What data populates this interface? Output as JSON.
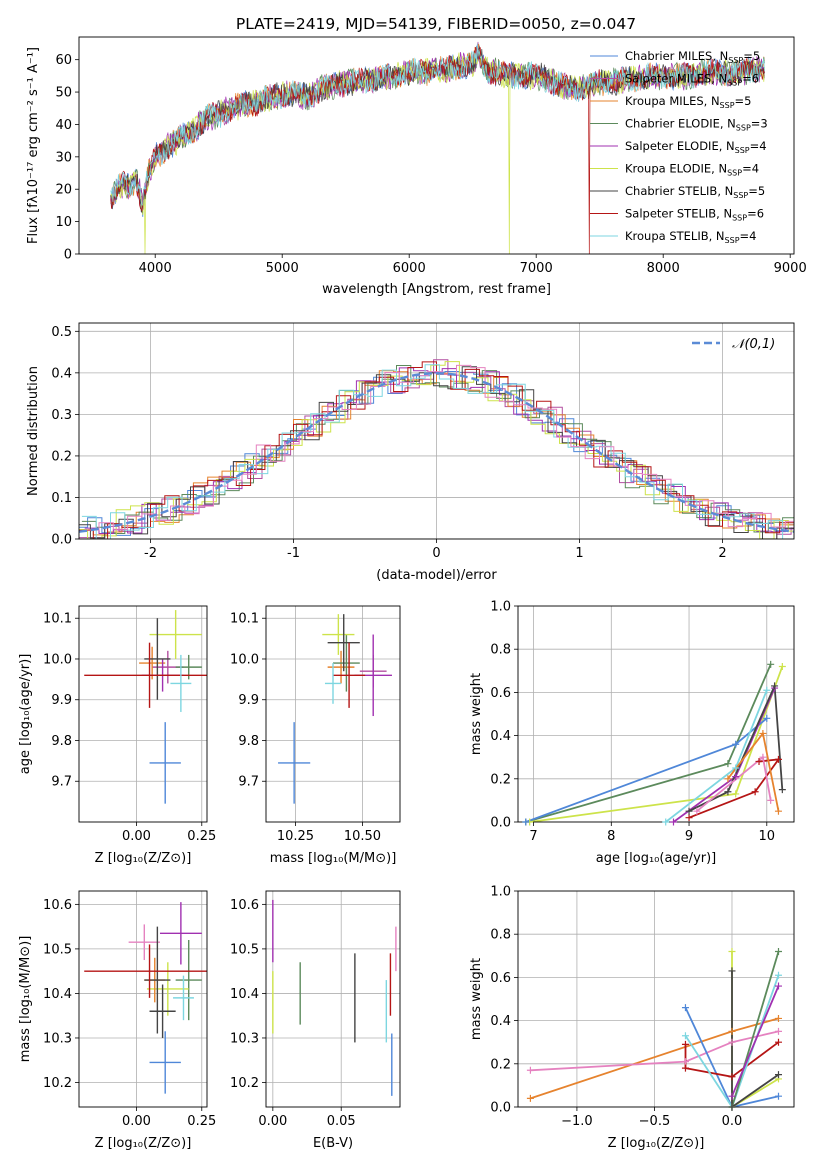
{
  "title": "PLATE=2419, MJD=54139, FIBERID=0050, z=0.047",
  "colors": {
    "Chabrier MILES": "#4f87d8",
    "Salpeter MILES": "#b24fa0",
    "Kroupa MILES": "#e6832e",
    "Chabrier ELODIE": "#5c8a5c",
    "Salpeter ELODIE": "#a030b0",
    "Kroupa ELODIE": "#cde34a",
    "Chabrier STELIB": "#444444",
    "Salpeter STELIB": "#b51515",
    "Kroupa STELIB": "#7dd6e0",
    "Pink": "#e582c0"
  },
  "chart_data": [
    {
      "id": "spectrum",
      "type": "line",
      "title": "PLATE=2419, MJD=54139, FIBERID=0050, z=0.047",
      "xlabel": "wavelength [Angstrom, rest frame]",
      "ylabel": "Flux [fλ10⁻¹⁷ erg cm⁻² s⁻¹ A⁻¹]",
      "xlim": [
        3400,
        9030
      ],
      "ylim": [
        0,
        67
      ],
      "xticks": [
        4000,
        5000,
        6000,
        7000,
        8000,
        9000
      ],
      "yticks": [
        0,
        10,
        20,
        30,
        40,
        50,
        60
      ],
      "legend": "right",
      "legend_entries": [
        {
          "name": "Chabrier MILES",
          "nssp": "5"
        },
        {
          "name": "Salpeter MILES",
          "nssp": "6"
        },
        {
          "name": "Kroupa MILES",
          "nssp": "5"
        },
        {
          "name": "Chabrier ELODIE",
          "nssp": "3"
        },
        {
          "name": "Salpeter ELODIE",
          "nssp": "4"
        },
        {
          "name": "Kroupa ELODIE",
          "nssp": "4"
        },
        {
          "name": "Chabrier STELIB",
          "nssp": "5"
        },
        {
          "name": "Salpeter STELIB",
          "nssp": "6"
        },
        {
          "name": "Kroupa STELIB",
          "nssp": "4"
        }
      ],
      "nssp_prefix": "N",
      "nssp_sub": "SSP",
      "spectrum_envelope": [
        [
          3650,
          17
        ],
        [
          3700,
          20
        ],
        [
          3750,
          22
        ],
        [
          3800,
          20
        ],
        [
          3850,
          24
        ],
        [
          3900,
          15
        ],
        [
          3950,
          25
        ],
        [
          4000,
          30
        ],
        [
          4100,
          33
        ],
        [
          4200,
          36
        ],
        [
          4300,
          38
        ],
        [
          4400,
          42
        ],
        [
          4500,
          43
        ],
        [
          4600,
          45
        ],
        [
          4700,
          46
        ],
        [
          4800,
          47
        ],
        [
          4900,
          48
        ],
        [
          5000,
          49
        ],
        [
          5100,
          50
        ],
        [
          5200,
          48
        ],
        [
          5300,
          51
        ],
        [
          5400,
          52
        ],
        [
          5500,
          53
        ],
        [
          5600,
          53
        ],
        [
          5700,
          54
        ],
        [
          5800,
          55
        ],
        [
          5900,
          55
        ],
        [
          6000,
          56
        ],
        [
          6100,
          56
        ],
        [
          6200,
          57
        ],
        [
          6300,
          57
        ],
        [
          6400,
          58
        ],
        [
          6500,
          59
        ],
        [
          6550,
          62
        ],
        [
          6600,
          57
        ],
        [
          6700,
          56
        ],
        [
          6800,
          55
        ],
        [
          6900,
          55
        ],
        [
          7000,
          55
        ],
        [
          7100,
          54
        ],
        [
          7200,
          52
        ],
        [
          7300,
          51
        ],
        [
          7400,
          52
        ],
        [
          7500,
          53
        ],
        [
          7600,
          53
        ],
        [
          7700,
          54
        ],
        [
          7800,
          54
        ],
        [
          7900,
          55
        ],
        [
          8000,
          55
        ],
        [
          8100,
          55
        ],
        [
          8200,
          55
        ],
        [
          8300,
          56
        ],
        [
          8400,
          56
        ],
        [
          8500,
          56
        ],
        [
          8600,
          56
        ],
        [
          8700,
          57
        ],
        [
          8800,
          57
        ]
      ],
      "drops": [
        {
          "x": 3920,
          "series": "Kroupa ELODIE"
        },
        {
          "x": 6790,
          "series": "Kroupa ELODIE"
        },
        {
          "x": 7420,
          "series": "Salpeter STELIB"
        }
      ]
    },
    {
      "id": "residuals",
      "type": "histogram",
      "xlabel": "(data-model)/error",
      "ylabel": "Normed distribution",
      "xlim": [
        -2.5,
        2.5
      ],
      "ylim": [
        0,
        0.52
      ],
      "xticks": [
        -2,
        -1,
        0,
        1,
        2
      ],
      "yticks": [
        0.0,
        0.1,
        0.2,
        0.3,
        0.4,
        0.5
      ],
      "legend": "top-right",
      "legend_entries": [
        {
          "name": "𝒩(0,1)"
        }
      ],
      "gaussian": {
        "mu": 0,
        "sigma": 1
      }
    },
    {
      "id": "age-vs-Z",
      "type": "errorbar",
      "xlabel": "Z [log₁₀(Z/Z⊙)]",
      "ylabel": "age  [log₁₀(age/yr)]",
      "xlim": [
        -0.22,
        0.27
      ],
      "ylim": [
        9.6,
        10.13
      ],
      "xticks": [
        0.0,
        0.25
      ],
      "xticklabels": [
        "0.00",
        "0.25"
      ],
      "yticks": [
        9.7,
        9.8,
        9.9,
        10.0,
        10.1
      ],
      "points": [
        {
          "series": "Chabrier MILES",
          "x": 0.11,
          "xerr": 0.06,
          "y": 9.745,
          "yerr": 0.1
        },
        {
          "series": "Salpeter MILES",
          "x": 0.12,
          "xerr": 0.06,
          "y": 9.98,
          "yerr": 0.04
        },
        {
          "series": "Kroupa MILES",
          "x": 0.06,
          "xerr": 0.05,
          "y": 9.99,
          "yerr": 0.04
        },
        {
          "series": "Chabrier ELODIE",
          "x": 0.2,
          "xerr": 0.05,
          "y": 9.98,
          "yerr": 0.03
        },
        {
          "series": "Salpeter ELODIE",
          "x": 0.1,
          "xerr": 0.08,
          "y": 9.96,
          "yerr": 0.04
        },
        {
          "series": "Kroupa ELODIE",
          "x": 0.15,
          "xerr": 0.1,
          "y": 10.06,
          "yerr": 0.06
        },
        {
          "series": "Chabrier STELIB",
          "x": 0.08,
          "xerr": 0.05,
          "y": 10.0,
          "yerr": 0.1
        },
        {
          "series": "Salpeter STELIB",
          "x": 0.05,
          "xerr": 0.25,
          "y": 9.96,
          "yerr": 0.08
        },
        {
          "series": "Kroupa STELIB",
          "x": 0.17,
          "xerr": 0.04,
          "y": 9.94,
          "yerr": 0.07
        }
      ]
    },
    {
      "id": "age-vs-mass",
      "type": "errorbar",
      "xlabel": "mass [log₁₀(M/M⊙)]",
      "ylabel": "",
      "xlim": [
        10.14,
        10.64
      ],
      "ylim": [
        9.6,
        10.13
      ],
      "xticks": [
        10.25,
        10.5
      ],
      "xticklabels": [
        "10.25",
        "10.50"
      ],
      "yticks": [
        9.7,
        9.8,
        9.9,
        10.0,
        10.1
      ],
      "points": [
        {
          "series": "Chabrier MILES",
          "x": 10.245,
          "xerr": 0.06,
          "y": 9.745,
          "yerr": 0.1
        },
        {
          "series": "Salpeter MILES",
          "x": 10.54,
          "xerr": 0.05,
          "y": 9.97,
          "yerr": 0.04
        },
        {
          "series": "Kroupa MILES",
          "x": 10.42,
          "xerr": 0.05,
          "y": 9.98,
          "yerr": 0.04
        },
        {
          "series": "Chabrier ELODIE",
          "x": 10.44,
          "xerr": 0.05,
          "y": 9.99,
          "yerr": 0.07
        },
        {
          "series": "Salpeter ELODIE",
          "x": 10.54,
          "xerr": 0.07,
          "y": 9.96,
          "yerr": 0.1
        },
        {
          "series": "Kroupa ELODIE",
          "x": 10.41,
          "xerr": 0.06,
          "y": 10.06,
          "yerr": 0.05
        },
        {
          "series": "Chabrier STELIB",
          "x": 10.43,
          "xerr": 0.06,
          "y": 10.04,
          "yerr": 0.07
        },
        {
          "series": "Salpeter STELIB",
          "x": 10.45,
          "xerr": 0.06,
          "y": 9.96,
          "yerr": 0.08
        },
        {
          "series": "Kroupa STELIB",
          "x": 10.39,
          "xerr": 0.03,
          "y": 9.94,
          "yerr": 0.05
        }
      ]
    },
    {
      "id": "weight-vs-age",
      "type": "line",
      "xlabel": "age  [log₁₀(age/yr)]",
      "ylabel": "mass weight",
      "xlim": [
        6.8,
        10.35
      ],
      "ylim": [
        0,
        1.0
      ],
      "xticks": [
        7,
        8,
        9,
        10
      ],
      "yticks": [
        0.0,
        0.2,
        0.4,
        0.6,
        0.8,
        1.0
      ],
      "series": [
        {
          "name": "Chabrier ELODIE",
          "x": [
            6.9,
            9.5,
            10.05
          ],
          "y": [
            0.0,
            0.27,
            0.73
          ]
        },
        {
          "name": "Kroupa ELODIE",
          "x": [
            6.95,
            9.6,
            10.2
          ],
          "y": [
            0.0,
            0.13,
            0.72
          ]
        },
        {
          "name": "Chabrier MILES",
          "x": [
            6.9,
            9.6,
            10.0
          ],
          "y": [
            0.0,
            0.36,
            0.48
          ]
        },
        {
          "name": "Salpeter ELODIE",
          "x": [
            8.8,
            9.6,
            10.1
          ],
          "y": [
            0.0,
            0.21,
            0.62
          ]
        },
        {
          "name": "Salpeter STELIB",
          "x": [
            9.0,
            9.85,
            10.15,
            9.9
          ],
          "y": [
            0.02,
            0.14,
            0.29,
            0.28
          ]
        },
        {
          "name": "Chabrier STELIB",
          "x": [
            9.0,
            9.5,
            10.1,
            10.2
          ],
          "y": [
            0.05,
            0.14,
            0.63,
            0.15
          ]
        },
        {
          "name": "Kroupa STELIB",
          "x": [
            8.7,
            9.6,
            10.0
          ],
          "y": [
            0.0,
            0.25,
            0.61
          ]
        },
        {
          "name": "Kroupa MILES",
          "x": [
            9.5,
            9.95,
            10.15
          ],
          "y": [
            0.2,
            0.41,
            0.05
          ]
        },
        {
          "name": "Pink",
          "x": [
            9.1,
            9.95,
            10.05
          ],
          "y": [
            0.05,
            0.3,
            0.1
          ]
        }
      ]
    },
    {
      "id": "mass-vs-Z",
      "type": "errorbar",
      "xlabel": "Z [log₁₀(Z/Z⊙)]",
      "ylabel": "mass [log₁₀(M/M⊙)]",
      "xlim": [
        -0.22,
        0.27
      ],
      "ylim": [
        10.145,
        10.63
      ],
      "xticks": [
        0.0,
        0.25
      ],
      "xticklabels": [
        "0.00",
        "0.25"
      ],
      "yticks": [
        10.2,
        10.3,
        10.4,
        10.5,
        10.6
      ],
      "points": [
        {
          "series": "Chabrier MILES",
          "x": 0.11,
          "xerr": 0.06,
          "y": 10.245,
          "yerr": 0.07
        },
        {
          "series": "Pink",
          "x": 0.03,
          "xerr": 0.06,
          "y": 10.515,
          "yerr": 0.04
        },
        {
          "series": "Salpeter ELODIE",
          "x": 0.17,
          "xerr": 0.08,
          "y": 10.535,
          "yerr": 0.07
        },
        {
          "series": "Chabrier ELODIE",
          "x": 0.2,
          "xerr": 0.05,
          "y": 10.43,
          "yerr": 0.09
        },
        {
          "series": "Kroupa ELODIE",
          "x": 0.12,
          "xerr": 0.08,
          "y": 10.41,
          "yerr": 0.06
        },
        {
          "series": "Kroupa MILES",
          "x": 0.07,
          "xerr": 0.04,
          "y": 10.43,
          "yerr": 0.05
        },
        {
          "series": "Chabrier STELIB",
          "x": 0.08,
          "xerr": 0.05,
          "y": 10.43,
          "yerr": 0.12
        },
        {
          "series": "Salpeter STELIB",
          "x": 0.05,
          "xerr": 0.25,
          "y": 10.45,
          "yerr": 0.06
        },
        {
          "series": "Kroupa STELIB",
          "x": 0.18,
          "xerr": 0.04,
          "y": 10.39,
          "yerr": 0.05
        },
        {
          "series": "Chabrier STELIB",
          "x": 0.1,
          "xerr": 0.05,
          "y": 10.36,
          "yerr": 0.06
        }
      ]
    },
    {
      "id": "mass-vs-EBV",
      "type": "errorbar",
      "xlabel": "E(B-V)",
      "ylabel": "",
      "xlim": [
        -0.005,
        0.093
      ],
      "ylim": [
        10.145,
        10.63
      ],
      "xticks": [
        0.0,
        0.05
      ],
      "xticklabels": [
        "0.00",
        "0.05"
      ],
      "yticks": [
        10.2,
        10.3,
        10.4,
        10.5,
        10.6
      ],
      "points": [
        {
          "series": "Salpeter ELODIE",
          "x": 0.0,
          "xerr": 0,
          "y": 10.54,
          "yerr": 0.07
        },
        {
          "series": "Kroupa ELODIE",
          "x": 0.0,
          "xerr": 0,
          "y": 10.38,
          "yerr": 0.07
        },
        {
          "series": "Chabrier ELODIE",
          "x": 0.02,
          "xerr": 0,
          "y": 10.4,
          "yerr": 0.07
        },
        {
          "series": "Chabrier STELIB",
          "x": 0.06,
          "xerr": 0,
          "y": 10.39,
          "yerr": 0.1
        },
        {
          "series": "Kroupa STELIB",
          "x": 0.083,
          "xerr": 0,
          "y": 10.36,
          "yerr": 0.07
        },
        {
          "series": "Salpeter STELIB",
          "x": 0.086,
          "xerr": 0,
          "y": 10.42,
          "yerr": 0.07
        },
        {
          "series": "Pink",
          "x": 0.09,
          "xerr": 0,
          "y": 10.5,
          "yerr": 0.05
        },
        {
          "series": "Chabrier MILES",
          "x": 0.087,
          "xerr": 0,
          "y": 10.24,
          "yerr": 0.07
        }
      ]
    },
    {
      "id": "weight-vs-Z",
      "type": "line",
      "xlabel": "Z [log₁₀(Z/Z⊙)]",
      "ylabel": "mass weight",
      "xlim": [
        -1.38,
        0.4
      ],
      "ylim": [
        0,
        1.0
      ],
      "xticks": [
        -1.0,
        -0.5,
        0.0
      ],
      "xticklabels": [
        "−1.0",
        "−0.5",
        "0.0"
      ],
      "yticks": [
        0.0,
        0.2,
        0.4,
        0.6,
        0.8,
        1.0
      ],
      "series": [
        {
          "name": "Kroupa MILES",
          "x": [
            -1.3,
            0.0,
            0.3
          ],
          "y": [
            0.04,
            0.35,
            0.41
          ]
        },
        {
          "name": "Pink",
          "x": [
            -1.3,
            -0.3,
            0.0,
            0.3
          ],
          "y": [
            0.17,
            0.21,
            0.3,
            0.35
          ]
        },
        {
          "name": "Chabrier MILES",
          "x": [
            -0.3,
            0.0,
            0.3
          ],
          "y": [
            0.46,
            0.0,
            0.05
          ]
        },
        {
          "name": "Salpeter STELIB",
          "x": [
            -0.3,
            -0.3,
            0.0,
            0.3
          ],
          "y": [
            0.29,
            0.18,
            0.14,
            0.3
          ]
        },
        {
          "name": "Kroupa STELIB",
          "x": [
            -0.3,
            0.0,
            0.3
          ],
          "y": [
            0.33,
            0.0,
            0.61
          ]
        },
        {
          "name": "Chabrier ELODIE",
          "x": [
            0.0,
            0.3
          ],
          "y": [
            0.0,
            0.72
          ]
        },
        {
          "name": "Salpeter ELODIE",
          "x": [
            0.0,
            0.3
          ],
          "y": [
            0.05,
            0.56
          ]
        },
        {
          "name": "Kroupa ELODIE",
          "x": [
            0.0,
            0.0,
            0.3
          ],
          "y": [
            0.72,
            0.0,
            0.13
          ]
        },
        {
          "name": "Chabrier STELIB",
          "x": [
            0.0,
            0.0,
            0.3
          ],
          "y": [
            0.63,
            0.0,
            0.15
          ]
        }
      ]
    }
  ]
}
